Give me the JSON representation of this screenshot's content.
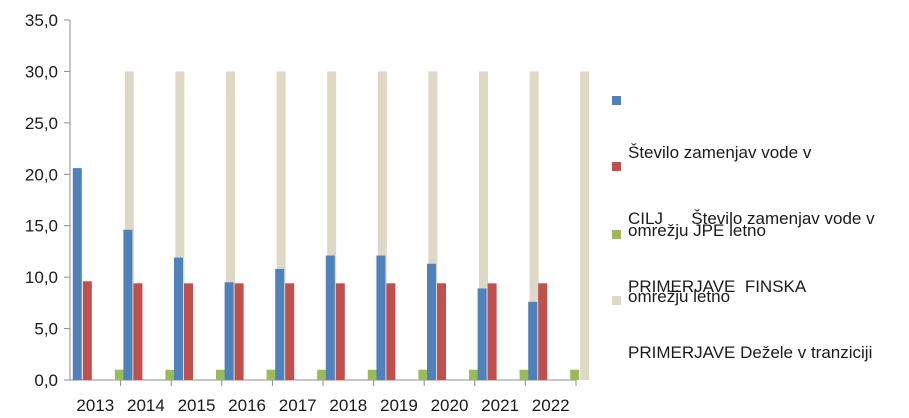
{
  "chart_data": {
    "type": "bar",
    "title": "",
    "xlabel": "",
    "ylabel": "",
    "ylim": [
      0,
      35
    ],
    "yticks": [
      "0,0",
      "5,0",
      "10,0",
      "15,0",
      "20,0",
      "25,0",
      "30,0",
      "35,0"
    ],
    "grid": false,
    "legend_position": "right",
    "categories": [
      "2013",
      "2014",
      "2015",
      "2016",
      "2017",
      "2018",
      "2019",
      "2020",
      "2021",
      "2022"
    ],
    "series": [
      {
        "name": "Število zamenjav vode v omrežju JPE letno",
        "color": "#4f81bd",
        "values": [
          20.6,
          14.6,
          11.9,
          9.5,
          10.8,
          12.1,
          12.1,
          11.3,
          8.9,
          7.6
        ]
      },
      {
        "name": "CILJ      Število zamenjav vode v omrežju letno",
        "color": "#c0504d",
        "values": [
          9.6,
          9.4,
          9.4,
          9.4,
          9.4,
          9.4,
          9.4,
          9.4,
          9.4,
          9.4
        ]
      },
      {
        "name": "PRIMERJAVE  FINSKA",
        "color": "#9bbb59",
        "values": [
          1.0,
          1.0,
          1.0,
          1.0,
          1.0,
          1.0,
          1.0,
          1.0,
          1.0,
          1.0
        ]
      },
      {
        "name": "PRIMERJAVE Dežele v tranziciji",
        "color": "#ddd9c4",
        "values": [
          30,
          30,
          30,
          30,
          30,
          30,
          30,
          30,
          30,
          30
        ]
      }
    ]
  },
  "legend": {
    "items": [
      {
        "lines": [
          "Število zamenjav vode v",
          "omrežju JPE letno"
        ]
      },
      {
        "lines": [
          "CILJ      Število zamenjav vode v",
          "omrežju letno"
        ]
      },
      {
        "lines": [
          "PRIMERJAVE  FINSKA"
        ]
      },
      {
        "lines": [
          "PRIMERJAVE Dežele v tranziciji"
        ]
      }
    ]
  }
}
